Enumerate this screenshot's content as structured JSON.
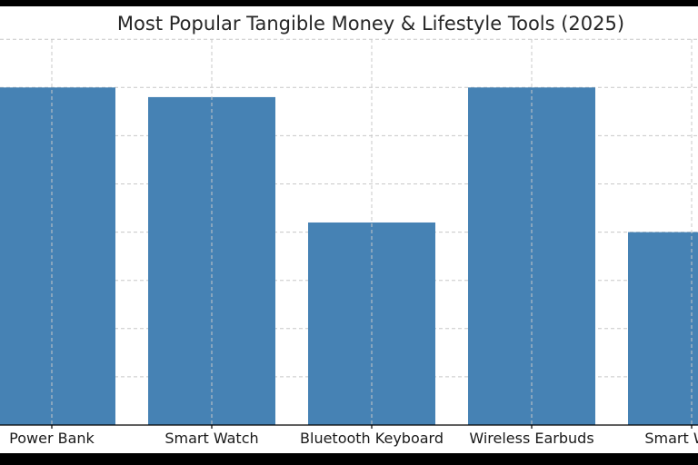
{
  "chart_data": {
    "type": "bar",
    "title": "Most Popular Tangible Money & Lifestyle Tools (2025)",
    "xlabel": "",
    "ylabel": "",
    "categories": [
      "Power Bank",
      "Smart Watch",
      "Bluetooth Keyboard",
      "Wireless Earbuds",
      "Smart Watch"
    ],
    "values": [
      7.0,
      6.8,
      4.2,
      7.0,
      4.0
    ],
    "ylim": [
      0,
      8
    ],
    "grid": true,
    "colors": {
      "bar": "#4682b4"
    }
  }
}
